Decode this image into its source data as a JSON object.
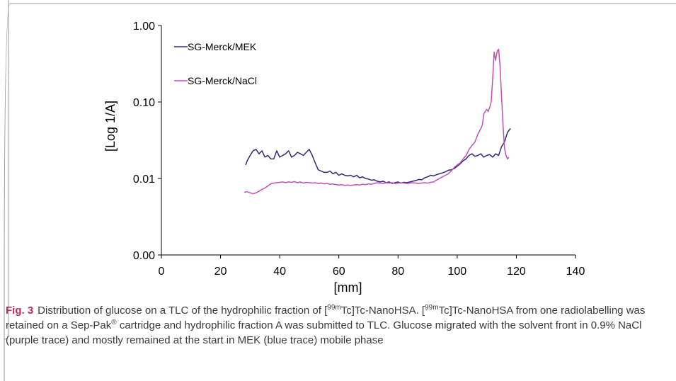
{
  "chart_data": {
    "type": "line",
    "xlabel": "[mm]",
    "ylabel": "[Log 1/A]",
    "xlim": [
      0,
      140
    ],
    "x_ticks": [
      0,
      20,
      40,
      60,
      80,
      100,
      120,
      140
    ],
    "y_ticks": [
      0.001,
      0.01,
      0.1,
      1.0
    ],
    "y_tick_labels": [
      "0.00",
      "0.01",
      "0.10",
      "1.00"
    ],
    "y_scale": "log",
    "ylim": [
      0.001,
      1.0
    ],
    "grid": false,
    "legend_position": "top-left",
    "series": [
      {
        "name": "SG-Merck/MEK",
        "color": "#2e2a7a",
        "x": [
          28.5,
          29,
          30,
          31,
          32,
          33,
          34,
          35,
          36,
          37,
          38,
          39,
          40,
          41,
          42,
          43,
          44,
          45,
          46,
          47,
          48,
          49,
          50,
          51,
          52,
          53,
          54,
          55,
          56,
          57,
          58,
          59,
          60,
          61,
          62,
          63,
          64,
          65,
          66,
          67,
          68,
          69,
          70,
          71,
          72,
          73,
          74,
          75,
          76,
          77,
          78,
          79,
          80,
          81,
          82,
          83,
          84,
          85,
          86,
          87,
          88,
          89,
          90,
          91,
          92,
          93,
          94,
          95,
          96,
          97,
          98,
          99,
          100,
          101,
          102,
          103,
          104,
          105,
          106,
          107,
          108,
          109,
          110,
          111,
          112,
          113,
          114,
          115,
          116,
          117,
          118
        ],
        "y": [
          0.015,
          0.017,
          0.02,
          0.023,
          0.024,
          0.021,
          0.023,
          0.019,
          0.02,
          0.018,
          0.018,
          0.023,
          0.019,
          0.02,
          0.021,
          0.023,
          0.019,
          0.02,
          0.022,
          0.021,
          0.02,
          0.022,
          0.024,
          0.02,
          0.016,
          0.013,
          0.0125,
          0.012,
          0.012,
          0.0125,
          0.0115,
          0.012,
          0.011,
          0.0115,
          0.011,
          0.0108,
          0.011,
          0.0105,
          0.011,
          0.0102,
          0.0105,
          0.01,
          0.0098,
          0.0095,
          0.0096,
          0.0092,
          0.009,
          0.0092,
          0.0088,
          0.009,
          0.0086,
          0.0088,
          0.009,
          0.0087,
          0.0089,
          0.0088,
          0.009,
          0.0092,
          0.0094,
          0.0097,
          0.0096,
          0.0102,
          0.0105,
          0.011,
          0.0108,
          0.0112,
          0.0115,
          0.0118,
          0.0122,
          0.0128,
          0.013,
          0.0135,
          0.0145,
          0.0155,
          0.017,
          0.018,
          0.02,
          0.021,
          0.0195,
          0.02,
          0.021,
          0.019,
          0.02,
          0.0205,
          0.019,
          0.021,
          0.02,
          0.026,
          0.03,
          0.04,
          0.045
        ]
      },
      {
        "name": "SG-Merck/NaCl",
        "color": "#c050b8",
        "x": [
          28,
          29,
          30,
          31,
          32,
          33,
          34,
          35,
          36,
          37,
          38,
          39,
          40,
          41,
          42,
          43,
          44,
          45,
          46,
          47,
          48,
          49,
          50,
          51,
          52,
          53,
          54,
          55,
          56,
          57,
          58,
          59,
          60,
          61,
          62,
          63,
          64,
          65,
          66,
          67,
          68,
          69,
          70,
          71,
          72,
          73,
          74,
          75,
          76,
          77,
          78,
          79,
          80,
          81,
          82,
          83,
          84,
          85,
          86,
          87,
          88,
          89,
          90,
          91,
          92,
          93,
          94,
          95,
          96,
          97,
          98,
          99,
          100,
          101,
          102,
          103,
          104,
          105,
          106,
          107,
          108,
          108.5,
          109,
          110,
          110.5,
          111,
          111.5,
          112,
          112.5,
          113,
          113.5,
          114,
          114.5,
          115,
          115.5,
          116,
          116.5,
          117,
          117.5
        ],
        "y": [
          0.0066,
          0.0067,
          0.0065,
          0.0063,
          0.0065,
          0.0068,
          0.0072,
          0.0075,
          0.008,
          0.0085,
          0.0087,
          0.0088,
          0.0089,
          0.009,
          0.0088,
          0.009,
          0.0089,
          0.0091,
          0.0088,
          0.009,
          0.0087,
          0.0089,
          0.0088,
          0.0087,
          0.0088,
          0.0086,
          0.0087,
          0.0085,
          0.0086,
          0.0084,
          0.0085,
          0.0083,
          0.0082,
          0.0083,
          0.0081,
          0.0082,
          0.0081,
          0.0082,
          0.0083,
          0.0082,
          0.0084,
          0.0083,
          0.0085,
          0.0084,
          0.0086,
          0.0088,
          0.0087,
          0.0086,
          0.0088,
          0.0087,
          0.0088,
          0.0086,
          0.0087,
          0.0088,
          0.0087,
          0.0086,
          0.0087,
          0.0088,
          0.0087,
          0.0086,
          0.0087,
          0.0088,
          0.0087,
          0.0089,
          0.009,
          0.0095,
          0.01,
          0.0105,
          0.011,
          0.0115,
          0.0125,
          0.014,
          0.015,
          0.016,
          0.018,
          0.02,
          0.024,
          0.027,
          0.03,
          0.038,
          0.045,
          0.05,
          0.07,
          0.08,
          0.075,
          0.085,
          0.1,
          0.2,
          0.45,
          0.35,
          0.46,
          0.49,
          0.3,
          0.12,
          0.05,
          0.025,
          0.02,
          0.018,
          0.019
        ]
      }
    ]
  },
  "caption": {
    "label": "Fig. 3",
    "p1": "Distribution of glucose on a TLC of the hydrophilic fraction of [",
    "sup1": "99m",
    "p2": "Tc]Tc-NanoHSA. [",
    "sup2": "99m",
    "p3": "Tc]Tc-NanoHSA from one radiolabelling was retained on a Sep-Pak",
    "sup3": "®",
    "p4": " cartridge and hydrophilic fraction A was submitted to TLC. Glucose migrated with the solvent front in 0.9% NaCl (purple trace) and mostly remained at the start in MEK (blue trace) mobile phase"
  }
}
